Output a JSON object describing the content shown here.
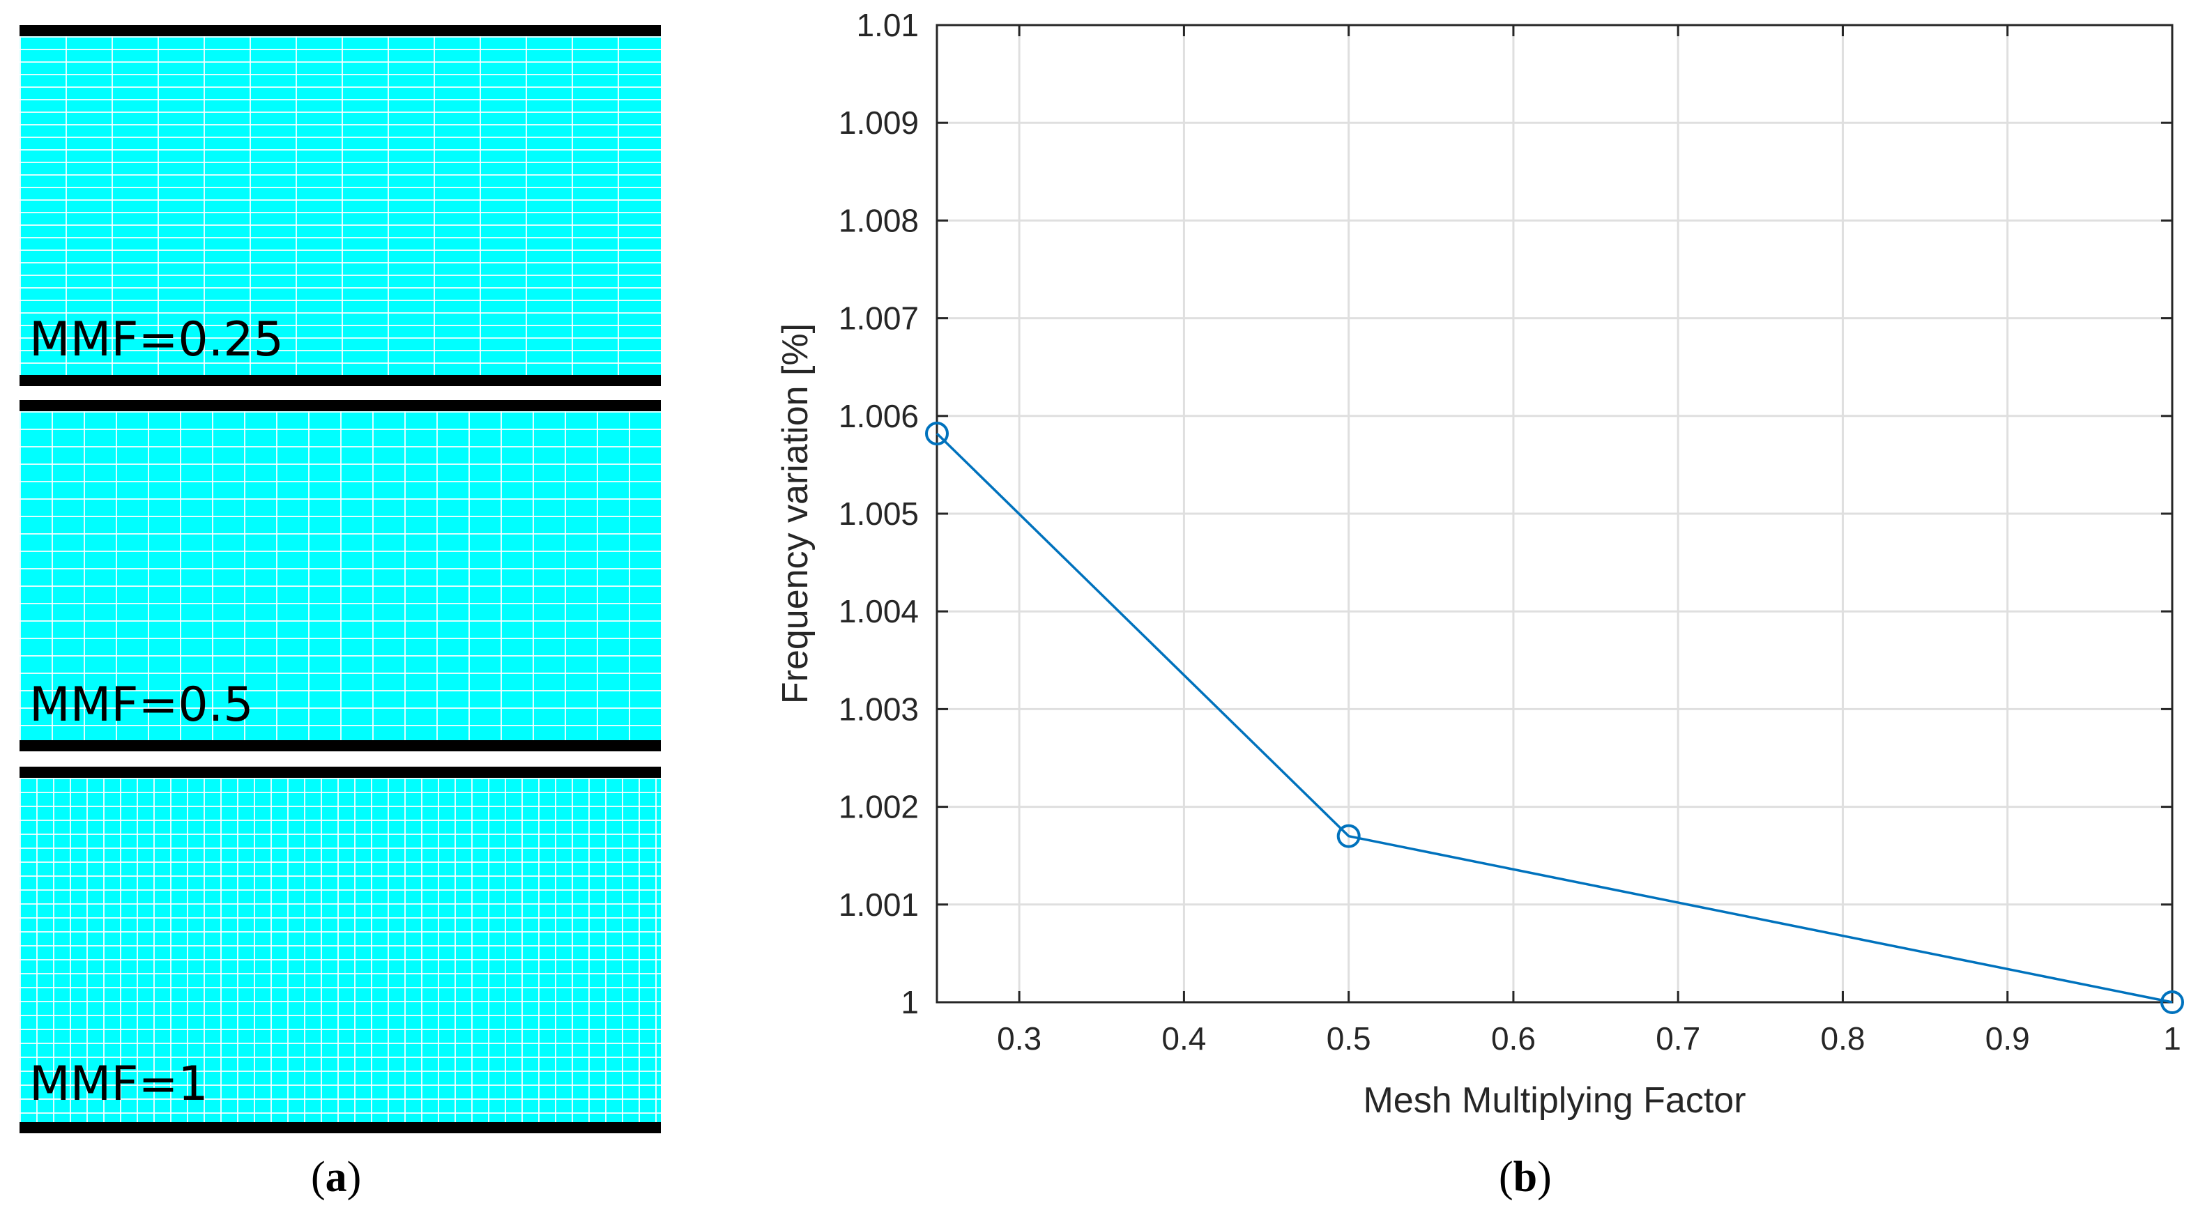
{
  "panel_a": {
    "meshes": [
      {
        "label": "MMF=0.25",
        "mmf": 0.25
      },
      {
        "label": "MMF=0.5",
        "mmf": 0.5
      },
      {
        "label": "MMF=1",
        "mmf": 1
      }
    ],
    "caption_open": "(",
    "caption_letter": "a",
    "caption_close": ")",
    "colors": {
      "mesh_fill": "#00ffff",
      "mesh_lines": "#ffffff",
      "plates": "#000000"
    }
  },
  "panel_b": {
    "caption_open": "(",
    "caption_letter": "b",
    "caption_close": ")"
  },
  "chart_data": {
    "type": "line",
    "title": "",
    "xlabel": "Mesh Multiplying Factor",
    "ylabel": "Frequency variation [%]",
    "xlim": [
      0.25,
      1
    ],
    "ylim": [
      1,
      1.01
    ],
    "xticks": [
      0.3,
      0.4,
      0.5,
      0.6,
      0.7,
      0.8,
      0.9,
      1
    ],
    "xtick_labels": [
      "0.3",
      "0.4",
      "0.5",
      "0.6",
      "0.7",
      "0.8",
      "0.9",
      "1"
    ],
    "yticks": [
      1,
      1.001,
      1.002,
      1.003,
      1.004,
      1.005,
      1.006,
      1.007,
      1.008,
      1.009,
      1.01
    ],
    "ytick_labels": [
      "1",
      "1.001",
      "1.002",
      "1.003",
      "1.004",
      "1.005",
      "1.006",
      "1.007",
      "1.008",
      "1.009",
      "1.01"
    ],
    "grid": true,
    "marker": "circle",
    "series": [
      {
        "name": "Frequency variation",
        "color": "#0072bd",
        "x": [
          0.25,
          0.5,
          1
        ],
        "y": [
          1.00582,
          1.0017,
          1.0
        ]
      }
    ]
  }
}
